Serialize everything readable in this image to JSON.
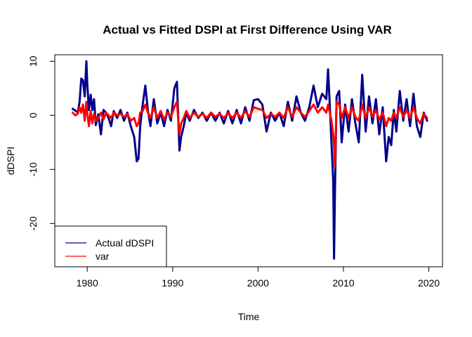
{
  "chart_data": {
    "type": "line",
    "title": "Actual vs Fitted DSPI at First Difference Using VAR",
    "xlabel": "Time",
    "ylabel": "dDSPI",
    "xlim": [
      1976.2,
      2021.6
    ],
    "ylim": [
      -28.0,
      11.2
    ],
    "x_ticks": [
      1980,
      1990,
      2000,
      2010,
      2020
    ],
    "y_ticks": [
      10,
      0,
      -10,
      -20
    ],
    "legend_position": "bottom-left",
    "grid": false,
    "series": [
      {
        "name": "Actual dDSPI",
        "color": "#00008B",
        "x": [
          1978.3,
          1978.6,
          1978.9,
          1979.1,
          1979.3,
          1979.5,
          1979.7,
          1979.9,
          1980.0,
          1980.2,
          1980.4,
          1980.6,
          1980.8,
          1981.0,
          1981.3,
          1981.6,
          1981.9,
          1982.2,
          1982.5,
          1982.8,
          1983.1,
          1983.5,
          1983.9,
          1984.3,
          1984.7,
          1985.1,
          1985.5,
          1985.8,
          1986.0,
          1986.2,
          1986.5,
          1986.8,
          1987.1,
          1987.4,
          1987.8,
          1988.2,
          1988.6,
          1989.0,
          1989.4,
          1989.8,
          1990.2,
          1990.5,
          1990.8,
          1991.0,
          1991.3,
          1991.6,
          1992.0,
          1992.5,
          1993.0,
          1993.5,
          1994.0,
          1994.5,
          1995.0,
          1995.5,
          1996.0,
          1996.5,
          1997.0,
          1997.5,
          1998.0,
          1998.5,
          1999.0,
          1999.5,
          2000.0,
          2000.5,
          2001.0,
          2001.5,
          2002.0,
          2002.5,
          2003.0,
          2003.5,
          2004.0,
          2004.5,
          2005.0,
          2005.5,
          2006.0,
          2006.5,
          2007.0,
          2007.5,
          2008.0,
          2008.2,
          2008.4,
          2008.6,
          2008.8,
          2008.9,
          2009.0,
          2009.2,
          2009.5,
          2009.8,
          2010.2,
          2010.6,
          2011.0,
          2011.4,
          2011.8,
          2012.2,
          2012.6,
          2013.0,
          2013.4,
          2013.8,
          2014.2,
          2014.6,
          2015.0,
          2015.3,
          2015.6,
          2015.9,
          2016.2,
          2016.6,
          2017.0,
          2017.4,
          2017.8,
          2018.2,
          2018.6,
          2019.0,
          2019.4,
          2019.8
        ],
        "values": [
          1.2,
          0.9,
          0.5,
          2.5,
          6.8,
          6.5,
          3.5,
          10.0,
          6.0,
          1.0,
          3.8,
          1.0,
          3.0,
          -1.8,
          0.2,
          -3.5,
          1.0,
          0.5,
          -0.5,
          -2.0,
          0.8,
          -0.5,
          1.0,
          -1.0,
          0.5,
          -2.0,
          -4.0,
          -8.5,
          -8.0,
          -2.0,
          2.0,
          5.5,
          1.0,
          -2.0,
          3.0,
          -1.5,
          0.5,
          -2.0,
          1.0,
          -1.0,
          5.0,
          6.2,
          -6.5,
          -4.0,
          -2.0,
          0.5,
          -1.0,
          1.0,
          -0.5,
          0.5,
          -1.0,
          0.5,
          -1.0,
          0.5,
          -1.5,
          0.8,
          -1.5,
          1.0,
          -1.5,
          1.5,
          -1.0,
          2.8,
          3.0,
          2.0,
          -3.0,
          0.5,
          -1.0,
          0.5,
          -2.0,
          2.5,
          -1.0,
          3.5,
          0.5,
          -1.0,
          1.5,
          5.5,
          1.5,
          4.0,
          3.0,
          8.5,
          2.0,
          -5.0,
          -12.0,
          -26.5,
          -15.0,
          3.5,
          4.5,
          -5.0,
          2.0,
          -3.0,
          3.0,
          -1.5,
          -5.0,
          7.5,
          -3.0,
          3.5,
          -1.5,
          3.0,
          -3.5,
          1.5,
          -8.5,
          -4.0,
          -5.5,
          1.0,
          -3.0,
          4.5,
          -1.0,
          3.0,
          -2.0,
          4.0,
          -2.0,
          -4.0,
          0.5,
          -1.0
        ]
      },
      {
        "name": "var",
        "color": "#FF0000",
        "x": [
          1978.3,
          1978.6,
          1978.9,
          1979.1,
          1979.3,
          1979.5,
          1979.7,
          1979.9,
          1980.0,
          1980.2,
          1980.4,
          1980.6,
          1980.8,
          1981.0,
          1981.3,
          1981.6,
          1981.9,
          1982.2,
          1982.5,
          1982.8,
          1983.1,
          1983.5,
          1983.9,
          1984.3,
          1984.7,
          1985.1,
          1985.5,
          1985.8,
          1986.0,
          1986.2,
          1986.5,
          1986.8,
          1987.1,
          1987.4,
          1987.8,
          1988.2,
          1988.6,
          1989.0,
          1989.4,
          1989.8,
          1990.2,
          1990.5,
          1990.8,
          1991.0,
          1991.3,
          1991.6,
          1992.0,
          1992.5,
          1993.0,
          1993.5,
          1994.0,
          1994.5,
          1995.0,
          1995.5,
          1996.0,
          1996.5,
          1997.0,
          1997.5,
          1998.0,
          1998.5,
          1999.0,
          1999.5,
          2000.0,
          2000.5,
          2001.0,
          2001.5,
          2002.0,
          2002.5,
          2003.0,
          2003.5,
          2004.0,
          2004.5,
          2005.0,
          2005.5,
          2006.0,
          2006.5,
          2007.0,
          2007.5,
          2008.0,
          2008.2,
          2008.4,
          2008.6,
          2008.8,
          2008.9,
          2009.0,
          2009.2,
          2009.5,
          2009.8,
          2010.2,
          2010.6,
          2011.0,
          2011.4,
          2011.8,
          2012.2,
          2012.6,
          2013.0,
          2013.4,
          2013.8,
          2014.2,
          2014.6,
          2015.0,
          2015.3,
          2015.6,
          2015.9,
          2016.2,
          2016.6,
          2017.0,
          2017.4,
          2017.8,
          2018.2,
          2018.6,
          2019.0,
          2019.4,
          2019.8
        ],
        "values": [
          0.5,
          0.0,
          0.3,
          1.5,
          0.5,
          2.0,
          -1.0,
          2.5,
          0.5,
          -2.0,
          0.8,
          -1.5,
          0.3,
          -1.0,
          -0.5,
          0.5,
          -0.8,
          0.5,
          0.0,
          -0.5,
          0.5,
          0.0,
          0.3,
          -0.3,
          0.2,
          -1.0,
          -0.5,
          -2.0,
          -1.5,
          0.5,
          0.8,
          2.0,
          0.5,
          -0.5,
          1.5,
          -0.5,
          0.8,
          -0.8,
          0.5,
          -0.3,
          1.5,
          2.5,
          -3.5,
          -1.5,
          -0.5,
          0.8,
          -0.5,
          0.5,
          -0.3,
          0.3,
          -0.5,
          0.5,
          -0.3,
          0.3,
          -0.5,
          0.4,
          -0.5,
          0.5,
          -0.5,
          0.8,
          -0.3,
          1.5,
          1.2,
          1.0,
          -0.5,
          0.3,
          -0.3,
          0.5,
          -0.5,
          1.5,
          -0.3,
          1.5,
          0.5,
          -0.3,
          0.8,
          2.0,
          0.5,
          1.5,
          0.5,
          2.0,
          0.5,
          -1.0,
          -3.5,
          -5.5,
          -9.5,
          2.5,
          2.0,
          -0.5,
          1.5,
          -0.5,
          1.5,
          -0.3,
          -1.0,
          2.0,
          -0.5,
          1.5,
          -0.3,
          1.0,
          -0.8,
          0.5,
          -2.0,
          -0.5,
          -1.0,
          0.5,
          -0.5,
          1.5,
          -0.3,
          1.0,
          -0.5,
          1.5,
          -0.5,
          -1.5,
          0.3,
          -0.5
        ]
      }
    ]
  }
}
